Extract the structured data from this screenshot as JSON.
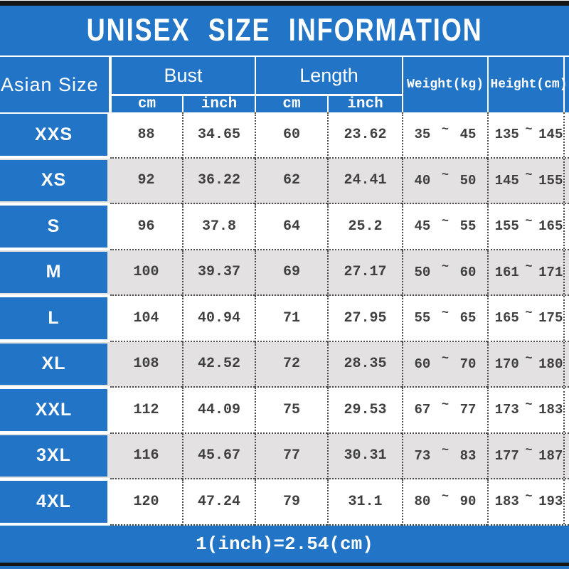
{
  "title": "UNISEX SIZE INFORMATION",
  "footer": {
    "note": "1(inch)=2.54(cm)"
  },
  "colors": {
    "accent_blue": "#2274c6",
    "row_alt_gray": "#e3e1e2",
    "bar_black": "#151515",
    "text_dark": "#3f3f3f"
  },
  "table": {
    "tilde": "~",
    "headers": {
      "asian_size": "Asian Size",
      "bust": "Bust",
      "length": "Length",
      "cm": "cm",
      "inch": "inch",
      "weight": "Weight(kg)",
      "height": "Height(cm)"
    },
    "rows": [
      {
        "size": "XXS",
        "bust_cm": "88",
        "bust_inch": "34.65",
        "length_cm": "60",
        "length_inch": "23.62",
        "weight_min": "35",
        "weight_max": "45",
        "height_min": "135",
        "height_max": "145"
      },
      {
        "size": "XS",
        "bust_cm": "92",
        "bust_inch": "36.22",
        "length_cm": "62",
        "length_inch": "24.41",
        "weight_min": "40",
        "weight_max": "50",
        "height_min": "145",
        "height_max": "155"
      },
      {
        "size": "S",
        "bust_cm": "96",
        "bust_inch": "37.8",
        "length_cm": "64",
        "length_inch": "25.2",
        "weight_min": "45",
        "weight_max": "55",
        "height_min": "155",
        "height_max": "165"
      },
      {
        "size": "M",
        "bust_cm": "100",
        "bust_inch": "39.37",
        "length_cm": "69",
        "length_inch": "27.17",
        "weight_min": "50",
        "weight_max": "60",
        "height_min": "161",
        "height_max": "171"
      },
      {
        "size": "L",
        "bust_cm": "104",
        "bust_inch": "40.94",
        "length_cm": "71",
        "length_inch": "27.95",
        "weight_min": "55",
        "weight_max": "65",
        "height_min": "165",
        "height_max": "175"
      },
      {
        "size": "XL",
        "bust_cm": "108",
        "bust_inch": "42.52",
        "length_cm": "72",
        "length_inch": "28.35",
        "weight_min": "60",
        "weight_max": "70",
        "height_min": "170",
        "height_max": "180"
      },
      {
        "size": "XXL",
        "bust_cm": "112",
        "bust_inch": "44.09",
        "length_cm": "75",
        "length_inch": "29.53",
        "weight_min": "67",
        "weight_max": "77",
        "height_min": "173",
        "height_max": "183"
      },
      {
        "size": "3XL",
        "bust_cm": "116",
        "bust_inch": "45.67",
        "length_cm": "77",
        "length_inch": "30.31",
        "weight_min": "73",
        "weight_max": "83",
        "height_min": "177",
        "height_max": "187"
      },
      {
        "size": "4XL",
        "bust_cm": "120",
        "bust_inch": "47.24",
        "length_cm": "79",
        "length_inch": "31.1",
        "weight_min": "80",
        "weight_max": "90",
        "height_min": "183",
        "height_max": "193"
      }
    ]
  }
}
